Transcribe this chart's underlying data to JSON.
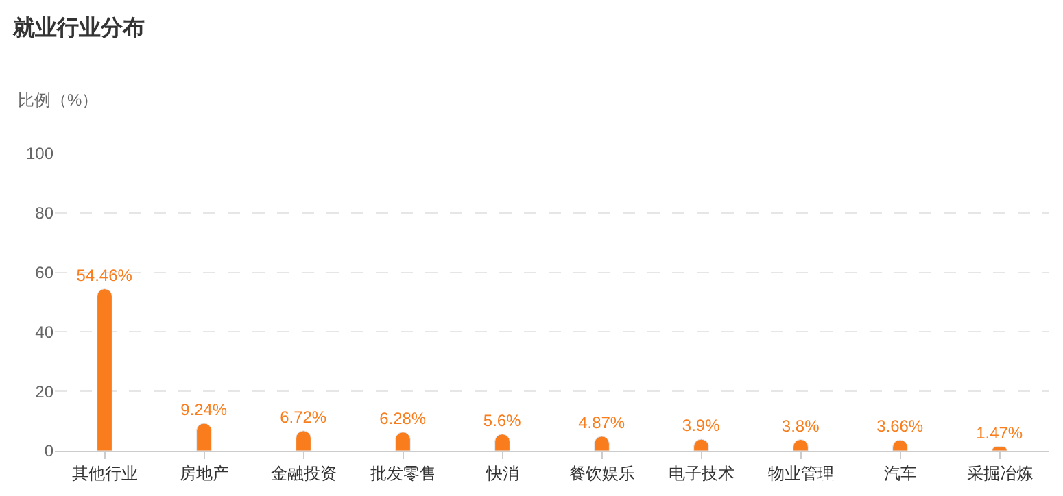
{
  "chart_data": {
    "type": "bar",
    "title": "就业行业分布",
    "ylabel": "比例（%）",
    "categories": [
      "其他行业",
      "房地产",
      "金融投资",
      "批发零售",
      "快消",
      "餐饮娱乐",
      "电子技术",
      "物业管理",
      "汽车",
      "采掘冶炼"
    ],
    "values": [
      54.46,
      9.24,
      6.72,
      6.28,
      5.6,
      4.87,
      3.9,
      3.8,
      3.66,
      1.47
    ],
    "value_labels": [
      "54.46%",
      "9.24%",
      "6.72%",
      "6.28%",
      "5.6%",
      "4.87%",
      "3.9%",
      "3.8%",
      "3.66%",
      "1.47%"
    ],
    "color": "#f97d1c",
    "ylim": [
      0,
      100
    ],
    "yticks": [
      0,
      20,
      40,
      60,
      80,
      100
    ],
    "grid": "y",
    "legend": false
  }
}
